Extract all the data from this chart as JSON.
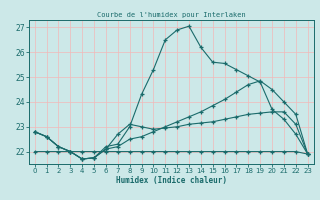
{
  "title": "Courbe de l'humidex pour Interlaken",
  "xlabel": "Humidex (Indice chaleur)",
  "xlim": [
    -0.5,
    23.5
  ],
  "ylim": [
    21.5,
    27.3
  ],
  "xticks": [
    0,
    1,
    2,
    3,
    4,
    5,
    6,
    7,
    8,
    9,
    10,
    11,
    12,
    13,
    14,
    15,
    16,
    17,
    18,
    19,
    20,
    21,
    22,
    23
  ],
  "yticks": [
    22,
    23,
    24,
    25,
    26,
    27
  ],
  "bg_color": "#cce8e8",
  "line_color": "#1a6b6b",
  "grid_color": "#f2b8b8",
  "line1_x": [
    0,
    1,
    2,
    3,
    4,
    5,
    6,
    7,
    8,
    9,
    10,
    11,
    12,
    13,
    14,
    15,
    16,
    17,
    18,
    19,
    20,
    21,
    22,
    23
  ],
  "line1_y": [
    22.8,
    22.6,
    22.2,
    22.0,
    21.7,
    21.75,
    22.2,
    22.3,
    23.0,
    24.3,
    25.3,
    26.5,
    26.9,
    27.05,
    26.2,
    25.6,
    25.55,
    25.3,
    25.05,
    24.8,
    23.7,
    23.3,
    22.7,
    21.9
  ],
  "line2_x": [
    0,
    1,
    2,
    3,
    4,
    5,
    6,
    7,
    8,
    9,
    10,
    11,
    12,
    13,
    14,
    15,
    16,
    17,
    18,
    19,
    20,
    21,
    22,
    23
  ],
  "line2_y": [
    22.8,
    22.6,
    22.2,
    22.0,
    21.7,
    21.75,
    22.1,
    22.2,
    22.5,
    22.6,
    22.8,
    23.0,
    23.2,
    23.4,
    23.6,
    23.85,
    24.1,
    24.4,
    24.7,
    24.85,
    24.5,
    24.0,
    23.5,
    21.9
  ],
  "line3_x": [
    0,
    1,
    2,
    3,
    4,
    5,
    6,
    7,
    8,
    9,
    10,
    11,
    12,
    13,
    14,
    15,
    16,
    17,
    18,
    19,
    20,
    21,
    22,
    23
  ],
  "line3_y": [
    22.8,
    22.6,
    22.2,
    22.0,
    21.7,
    21.75,
    22.1,
    22.7,
    23.1,
    23.0,
    22.9,
    22.95,
    23.0,
    23.1,
    23.15,
    23.2,
    23.3,
    23.4,
    23.5,
    23.55,
    23.6,
    23.6,
    23.1,
    21.9
  ],
  "line4_x": [
    0,
    1,
    2,
    3,
    4,
    5,
    6,
    7,
    8,
    9,
    10,
    11,
    12,
    13,
    14,
    15,
    16,
    17,
    18,
    19,
    20,
    21,
    22,
    23
  ],
  "line4_y": [
    22.0,
    22.0,
    22.0,
    22.0,
    22.0,
    22.0,
    22.0,
    22.0,
    22.0,
    22.0,
    22.0,
    22.0,
    22.0,
    22.0,
    22.0,
    22.0,
    22.0,
    22.0,
    22.0,
    22.0,
    22.0,
    22.0,
    22.0,
    21.9
  ]
}
